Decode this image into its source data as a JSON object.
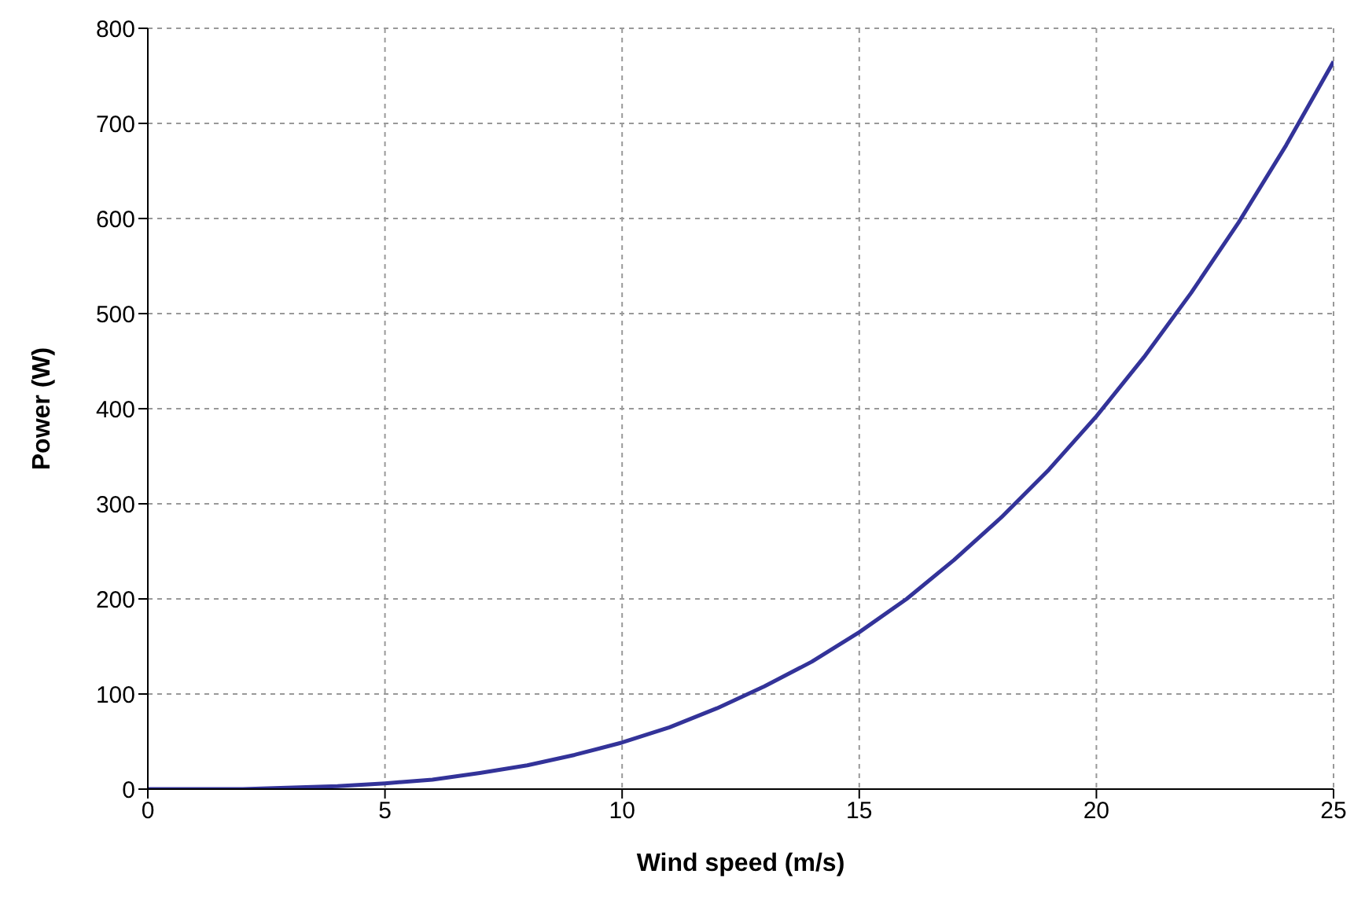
{
  "chart_data": {
    "type": "line",
    "xlabel": "Wind speed (m/s)",
    "ylabel": "Power (W)",
    "x": [
      0,
      2,
      4,
      5,
      6,
      7,
      8,
      9,
      10,
      11,
      12,
      13,
      14,
      15,
      16,
      17,
      18,
      19,
      20,
      21,
      22,
      23,
      24,
      25
    ],
    "series": [
      {
        "color": "#333399",
        "values": [
          0,
          0,
          3,
          6,
          10,
          17,
          25,
          36,
          49,
          65,
          85,
          108,
          134,
          165,
          200,
          241,
          286,
          336,
          392,
          454,
          522,
          596,
          677,
          765
        ]
      }
    ],
    "xlim": [
      0,
      25
    ],
    "xticks": [
      0,
      5,
      10,
      15,
      20,
      25
    ],
    "ylim": [
      0,
      800
    ],
    "yticks": [
      0,
      100,
      200,
      300,
      400,
      500,
      600,
      700,
      800
    ],
    "grid": true,
    "marker": "none",
    "line_style": "solid",
    "legend": false
  }
}
